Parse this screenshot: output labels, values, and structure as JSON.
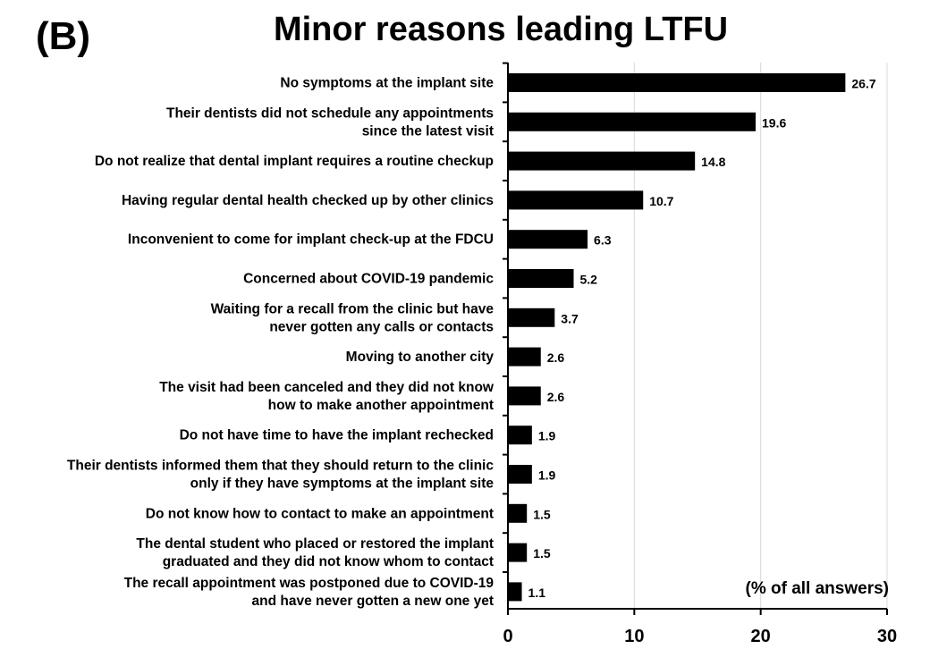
{
  "chart_data": {
    "type": "bar",
    "orientation": "horizontal",
    "panel_label": "(B)",
    "title": "Minor reasons leading LTFU",
    "unit_label": "(% of all answers)",
    "xlim": [
      0,
      30
    ],
    "xticks": [
      0,
      10,
      20,
      30
    ],
    "grid": "vertical lines at major ticks",
    "bar_color": "#000000",
    "categories": [
      [
        "No symptoms at the implant site"
      ],
      [
        "Their dentists did not schedule any appointments",
        "since the latest visit"
      ],
      [
        "Do not realize that dental implant requires a routine checkup"
      ],
      [
        "Having regular dental health checked up by other clinics"
      ],
      [
        "Inconvenient to come for implant check-up at the FDCU"
      ],
      [
        "Concerned about COVID-19 pandemic"
      ],
      [
        "Waiting for a recall from the clinic but have",
        "never gotten any calls or contacts"
      ],
      [
        "Moving to another city"
      ],
      [
        "The visit had been canceled and they did not know",
        "how to make another appointment"
      ],
      [
        "Do not have time to have the implant rechecked"
      ],
      [
        "Their dentists informed them that they should return to the clinic",
        "only if they have symptoms at the implant site"
      ],
      [
        "Do not know how to contact to make an appointment"
      ],
      [
        "The dental student who placed or restored the implant",
        "graduated and they did not know whom to contact"
      ],
      [
        "The recall appointment was postponed due to COVID-19",
        "and have never gotten a new one yet"
      ]
    ],
    "values": [
      26.7,
      19.6,
      14.8,
      10.7,
      6.3,
      5.2,
      3.7,
      2.6,
      2.6,
      1.9,
      1.9,
      1.5,
      1.5,
      1.1
    ],
    "value_labels": [
      "26.7",
      "19.6",
      "14.8",
      "10.7",
      "6.3",
      "5.2",
      "3.7",
      "2.6",
      "2.6",
      "1.9",
      "1.9",
      "1.5",
      "1.5",
      "1.1"
    ]
  }
}
